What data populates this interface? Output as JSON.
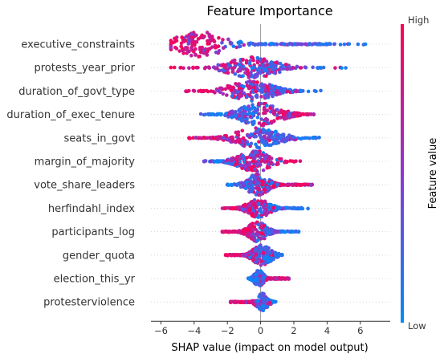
{
  "chart_data": {
    "type": "scatter",
    "title": "Feature Importance",
    "xlabel": "SHAP value (impact on model output)",
    "xlim": [
      -6.6,
      7.8
    ],
    "xticks": [
      -6,
      -4,
      -2,
      0,
      2,
      4,
      6
    ],
    "colorbar": {
      "label": "Feature value",
      "high_label": "High",
      "low_label": "Low",
      "high_color": "#ff0052",
      "low_color": "#008bfb"
    },
    "features": [
      {
        "name": "executive_constraints",
        "min": -5.4,
        "max": 7.0,
        "high_center": -3.9,
        "high_spread": 0.9,
        "low_center": 1.8,
        "low_spread": 1.7,
        "density_center": -3.6,
        "density_spread": 1.4,
        "max_halfwidth": 0.6
      },
      {
        "name": "protests_year_prior",
        "min": -5.6,
        "max": 5.4,
        "high_center": -1.2,
        "high_spread": 1.9,
        "low_center": 0.1,
        "low_spread": 1.1,
        "density_center": -0.5,
        "density_spread": 1.3,
        "max_halfwidth": 0.5
      },
      {
        "name": "duration_of_govt_type",
        "min": -4.5,
        "max": 3.7,
        "high_center": -1.0,
        "high_spread": 1.5,
        "low_center": 0.4,
        "low_spread": 1.0,
        "density_center": -0.6,
        "density_spread": 1.2,
        "max_halfwidth": 0.48
      },
      {
        "name": "duration_of_exec_tenure",
        "min": -3.6,
        "max": 3.2,
        "high_center": 1.4,
        "high_spread": 1.0,
        "low_center": -1.0,
        "low_spread": 1.0,
        "density_center": 0.0,
        "density_spread": 1.1,
        "max_halfwidth": 0.55
      },
      {
        "name": "seats_in_govt",
        "min": -4.3,
        "max": 3.6,
        "high_center": -2.0,
        "high_spread": 1.2,
        "low_center": 0.6,
        "low_spread": 0.9,
        "density_center": -0.2,
        "density_spread": 1.2,
        "max_halfwidth": 0.48
      },
      {
        "name": "margin_of_majority",
        "min": -3.4,
        "max": 2.5,
        "high_center": -0.4,
        "high_spread": 0.9,
        "low_center": -1.5,
        "low_spread": 1.0,
        "density_center": -0.3,
        "density_spread": 0.9,
        "max_halfwidth": 0.5
      },
      {
        "name": "vote_share_leaders",
        "min": -2.0,
        "max": 3.1,
        "high_center": 1.1,
        "high_spread": 0.9,
        "low_center": -0.4,
        "low_spread": 0.6,
        "density_center": -0.2,
        "density_spread": 0.6,
        "max_halfwidth": 0.5
      },
      {
        "name": "herfindahl_index",
        "min": -2.3,
        "max": 3.0,
        "high_center": -0.8,
        "high_spread": 0.7,
        "low_center": 0.6,
        "low_spread": 0.8,
        "density_center": -0.1,
        "density_spread": 0.6,
        "max_halfwidth": 0.45
      },
      {
        "name": "participants_log",
        "min": -2.3,
        "max": 2.3,
        "high_center": -0.8,
        "high_spread": 0.7,
        "low_center": 0.6,
        "low_spread": 0.6,
        "density_center": -0.2,
        "density_spread": 0.5,
        "max_halfwidth": 0.48
      },
      {
        "name": "gender_quota",
        "min": -2.1,
        "max": 1.3,
        "high_center": -0.9,
        "high_spread": 0.6,
        "low_center": 0.3,
        "low_spread": 0.4,
        "density_center": 0.1,
        "density_spread": 0.5,
        "max_halfwidth": 0.5
      },
      {
        "name": "election_this_yr",
        "min": -0.8,
        "max": 1.7,
        "high_center": 0.9,
        "high_spread": 0.4,
        "low_center": -0.1,
        "low_spread": 0.2,
        "density_center": -0.1,
        "density_spread": 0.25,
        "max_halfwidth": 0.4
      },
      {
        "name": "protesterviolence",
        "min": -1.8,
        "max": 1.0,
        "high_center": -0.7,
        "high_spread": 0.6,
        "low_center": 0.1,
        "low_spread": 0.2,
        "density_center": 0.1,
        "density_spread": 0.3,
        "max_halfwidth": 0.42
      }
    ]
  }
}
